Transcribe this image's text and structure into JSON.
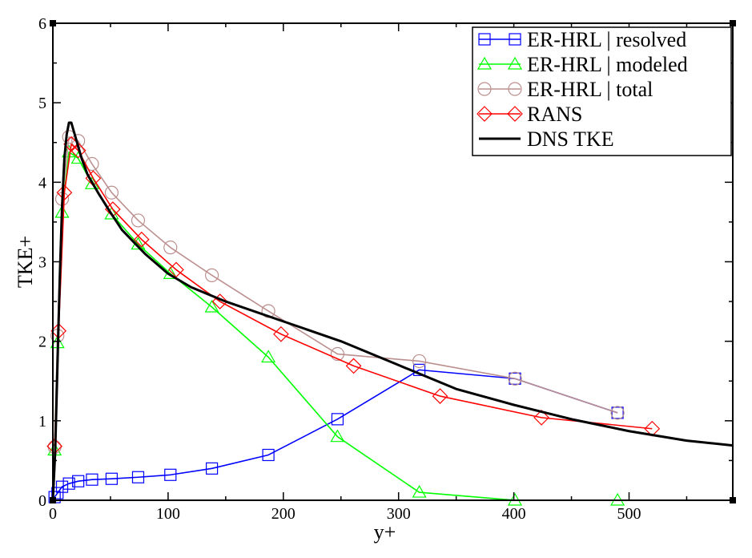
{
  "chart_data": {
    "type": "line",
    "xlabel": "y+",
    "ylabel": "TKE+",
    "xlim": [
      0,
      590
    ],
    "ylim": [
      0,
      6
    ],
    "x_ticks": [
      0,
      100,
      200,
      300,
      400,
      500
    ],
    "y_ticks": [
      0,
      1,
      2,
      3,
      4,
      5,
      6
    ],
    "grid": false,
    "legend_position": "top-right",
    "series": [
      {
        "name": "ER-HRL | resolved",
        "color": "#0000ff",
        "marker": "square",
        "x": [
          1.5,
          4,
          8,
          14,
          22,
          34,
          51,
          74,
          102,
          138,
          187,
          247,
          318,
          401,
          490
        ],
        "y": [
          0.04,
          0.09,
          0.17,
          0.21,
          0.24,
          0.26,
          0.27,
          0.29,
          0.32,
          0.4,
          0.57,
          1.02,
          1.64,
          1.53,
          1.1
        ]
      },
      {
        "name": "ER-HRL | modeled",
        "color": "#00ff00",
        "marker": "triangle",
        "x": [
          1.5,
          4,
          8,
          14,
          22,
          34,
          51,
          74,
          102,
          138,
          187,
          247,
          318,
          401,
          490
        ],
        "y": [
          0.63,
          1.98,
          3.62,
          4.38,
          4.3,
          3.98,
          3.6,
          3.22,
          2.85,
          2.43,
          1.8,
          0.8,
          0.1,
          0.0,
          0.0
        ]
      },
      {
        "name": "ER-HRL | total",
        "color": "#bc8f8f",
        "marker": "circle",
        "x": [
          1.5,
          4,
          8,
          14,
          22,
          34,
          51,
          74,
          102,
          138,
          187,
          247,
          318,
          401,
          490
        ],
        "y": [
          0.67,
          2.07,
          3.79,
          4.57,
          4.52,
          4.23,
          3.87,
          3.52,
          3.18,
          2.83,
          2.38,
          1.84,
          1.75,
          1.53,
          1.1
        ]
      },
      {
        "name": "RANS",
        "color": "#ff0000",
        "marker": "diamond",
        "x": [
          1.5,
          5,
          10,
          16,
          22,
          35,
          52,
          77,
          107,
          145,
          198,
          261,
          336,
          424,
          520
        ],
        "y": [
          0.68,
          2.13,
          3.87,
          4.48,
          4.4,
          4.05,
          3.66,
          3.28,
          2.9,
          2.5,
          2.09,
          1.69,
          1.31,
          1.04,
          0.9
        ]
      },
      {
        "name": "DNS TKE",
        "color": "#000000",
        "marker": "none",
        "x": [
          0,
          2,
          4,
          6,
          8,
          10,
          12,
          14,
          16,
          18,
          20,
          25,
          30,
          40,
          50,
          60,
          80,
          100,
          120,
          150,
          200,
          250,
          300,
          350,
          400,
          450,
          500,
          550,
          590
        ],
        "y": [
          0,
          0.6,
          1.7,
          2.8,
          3.7,
          4.3,
          4.6,
          4.75,
          4.75,
          4.65,
          4.55,
          4.3,
          4.1,
          3.85,
          3.62,
          3.4,
          3.1,
          2.85,
          2.68,
          2.5,
          2.25,
          2.0,
          1.7,
          1.4,
          1.2,
          1.02,
          0.87,
          0.75,
          0.69
        ]
      }
    ]
  }
}
